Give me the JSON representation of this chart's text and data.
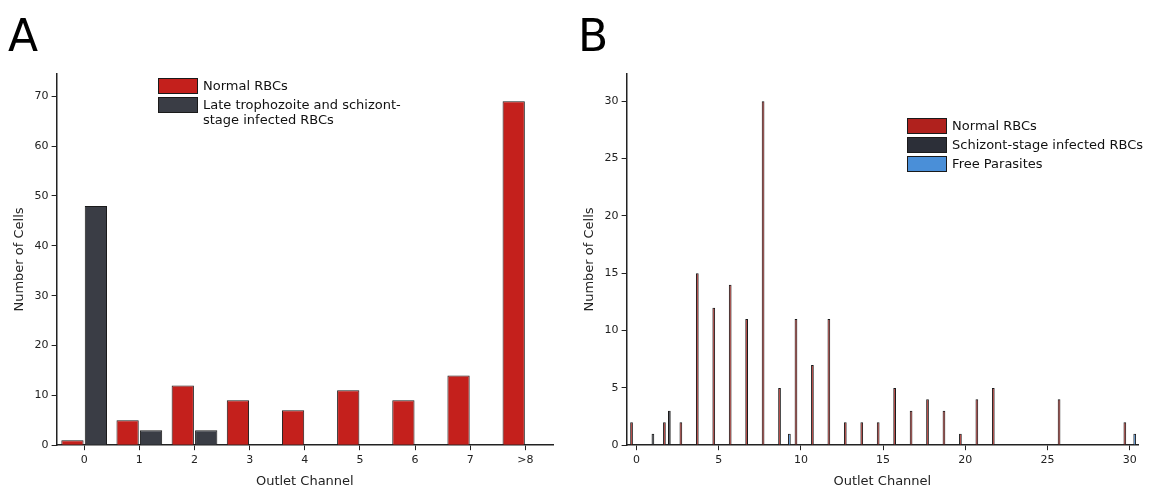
{
  "chart_data": [
    {
      "type": "bar",
      "title": "A",
      "xlabel": "Outlet Channel",
      "ylabel": "Number of Cells",
      "categories": [
        "0",
        "1",
        "2",
        "3",
        "4",
        "5",
        "6",
        "7",
        ">8"
      ],
      "series": [
        {
          "name": "Normal RBCs",
          "color": "#c4201c",
          "values": [
            1,
            5,
            12,
            9,
            7,
            11,
            9,
            14,
            69
          ]
        },
        {
          "name": "Late trophozoite and schizont-stage infected RBCs",
          "color": "#3a3d45",
          "values": [
            48,
            3,
            3,
            null,
            null,
            null,
            null,
            null,
            null
          ]
        }
      ],
      "ylim": [
        0,
        74.5
      ],
      "yticks": [
        0,
        10,
        20,
        30,
        40,
        50,
        60,
        70
      ],
      "legend": "top left"
    },
    {
      "type": "bar",
      "title": "B",
      "xlabel": "Outlet Channel",
      "ylabel": "Number of Cells",
      "series": [
        {
          "name": "Normal RBCs",
          "color": "#b0211d",
          "x": [
            0,
            2,
            3,
            4,
            5,
            6,
            7,
            8,
            9,
            10,
            11,
            12,
            13,
            14,
            15,
            16,
            17,
            18,
            19,
            20,
            21,
            22,
            26,
            30
          ],
          "values": [
            2,
            2,
            2,
            15,
            12,
            14,
            11,
            30,
            5,
            11,
            7,
            11,
            2,
            2,
            2,
            5,
            3,
            4,
            3,
            1,
            4,
            5,
            4,
            2
          ]
        },
        {
          "name": "Schizont-stage infected RBCs",
          "color": "#2c2f38",
          "x": [
            1,
            2
          ],
          "values": [
            1,
            3
          ]
        },
        {
          "name": "Free Parasites",
          "color": "#4a8fd8",
          "x": [
            9,
            30
          ],
          "values": [
            1,
            1
          ]
        }
      ],
      "xlim": [
        -0.6,
        30.5
      ],
      "xticks": [
        0,
        5,
        10,
        15,
        20,
        25,
        30
      ],
      "ylim": [
        0,
        32.4
      ],
      "yticks": [
        0,
        5,
        10,
        15,
        20,
        25,
        30
      ],
      "legend": "top right"
    }
  ]
}
